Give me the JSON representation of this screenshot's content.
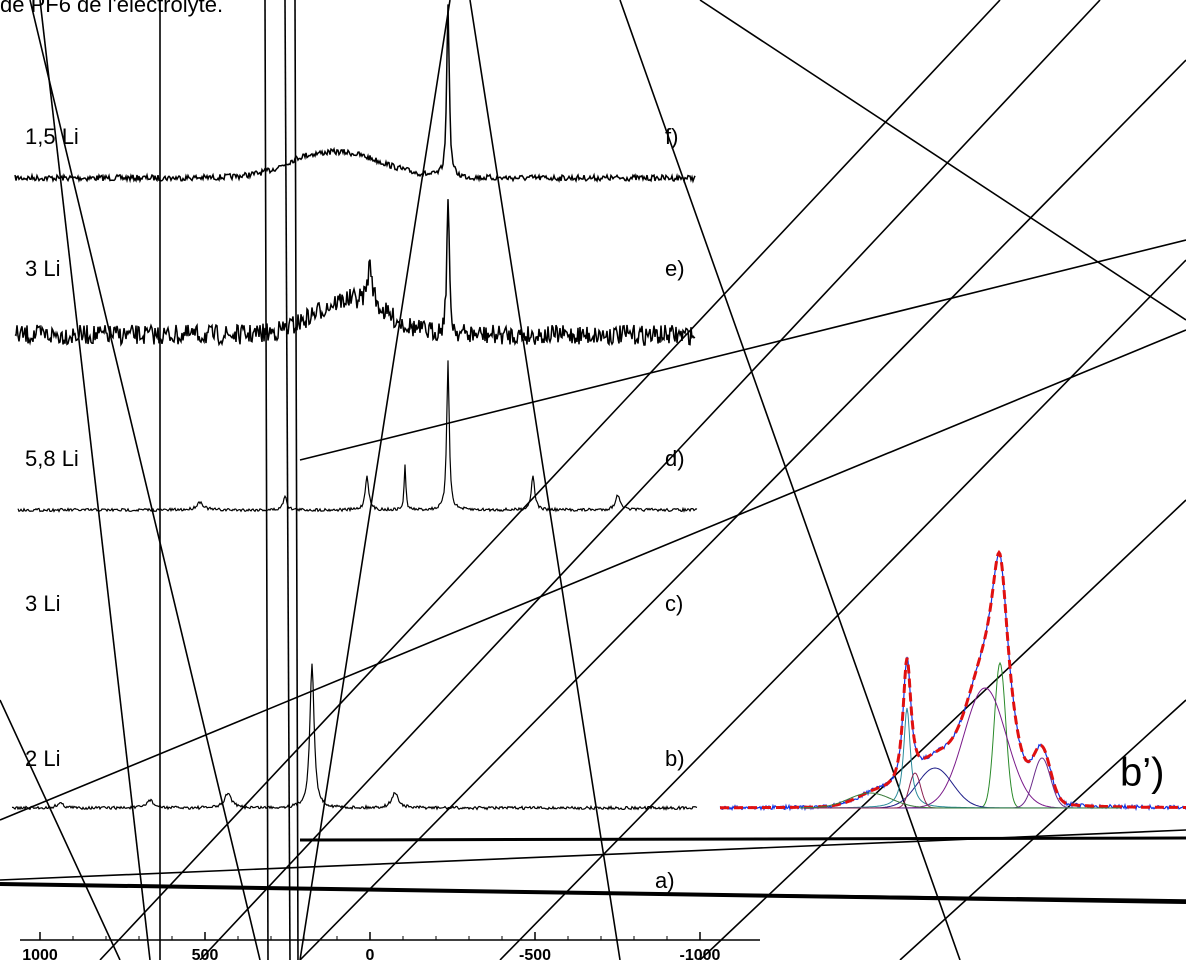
{
  "figure": {
    "caption": "de PF6 de l'électrolyte.",
    "spectra": [
      {
        "sample": "1,5 Li",
        "panel": "f)"
      },
      {
        "sample": "3 Li",
        "panel": "e)"
      },
      {
        "sample": "5,8 Li",
        "panel": "d)"
      },
      {
        "sample": "3 Li",
        "panel": "c)"
      },
      {
        "sample": "2 Li",
        "panel": "b)"
      }
    ],
    "panel_a": "a)",
    "inset_panel": "b’)",
    "axis": {
      "xlim": [
        1000,
        -1000
      ],
      "xticks": [
        1000,
        500,
        0,
        -500,
        -1000
      ]
    }
  }
}
